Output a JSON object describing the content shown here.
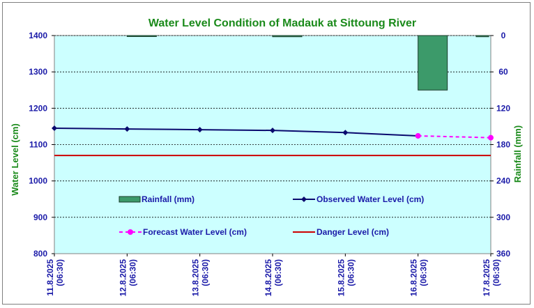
{
  "colors": {
    "plot_bg": "#ccffff",
    "title": "#1a8a1a",
    "axis_text": "#1a1aa8",
    "observed": "#0a0a6e",
    "forecast": "#ff00ff",
    "danger": "#cc0000",
    "rainfall_fill": "#3c9a6a",
    "rainfall_stroke": "#1a3a2a"
  },
  "chart_data": {
    "type": "line",
    "title": "Water Level Condition of Madauk at Sittoung River",
    "ylabel": "Water Level (cm)",
    "y2label": "Rainfall (mm)",
    "ylim": [
      800,
      1400
    ],
    "y_ticks": [
      "800",
      "900",
      "1000",
      "1100",
      "1200",
      "1300",
      "1400"
    ],
    "y2lim": [
      0,
      360
    ],
    "y2_inverted": true,
    "y2_ticks": [
      "0",
      "60",
      "120",
      "180",
      "240",
      "300",
      "360"
    ],
    "categories": [
      [
        "11.8.2025",
        "(06:30)"
      ],
      [
        "12.8.2025",
        "(06:30)"
      ],
      [
        "13.8.2025",
        "(06:30)"
      ],
      [
        "14.8.2025",
        "(06:30)"
      ],
      [
        "15.8.2025",
        "(06:30)"
      ],
      [
        "16.8.2025",
        "(06:30)"
      ],
      [
        "17.8.2025",
        "(06:30)"
      ]
    ],
    "grid": true,
    "series": [
      {
        "name": "Rainfall (mm)",
        "kind": "bar",
        "axis": "y2",
        "values": [
          0,
          1,
          0,
          2,
          0,
          90,
          2
        ]
      },
      {
        "name": "Observed Water Level (cm)",
        "kind": "line",
        "axis": "y",
        "values": [
          1145,
          1143,
          1141,
          1139,
          1133,
          1124,
          null
        ]
      },
      {
        "name": "Forecast Water Level (cm)",
        "kind": "dashed-line",
        "axis": "y",
        "values": [
          null,
          null,
          null,
          null,
          null,
          1124,
          1119
        ]
      },
      {
        "name": "Danger Level (cm)",
        "kind": "hline",
        "axis": "y",
        "value": 1070
      }
    ],
    "legend": [
      {
        "label": "Rainfall (mm)"
      },
      {
        "label": "Observed Water Level (cm)"
      },
      {
        "label": "Forecast Water Level (cm)"
      },
      {
        "label": "Danger Level (cm)"
      }
    ],
    "legend_position": "center"
  }
}
